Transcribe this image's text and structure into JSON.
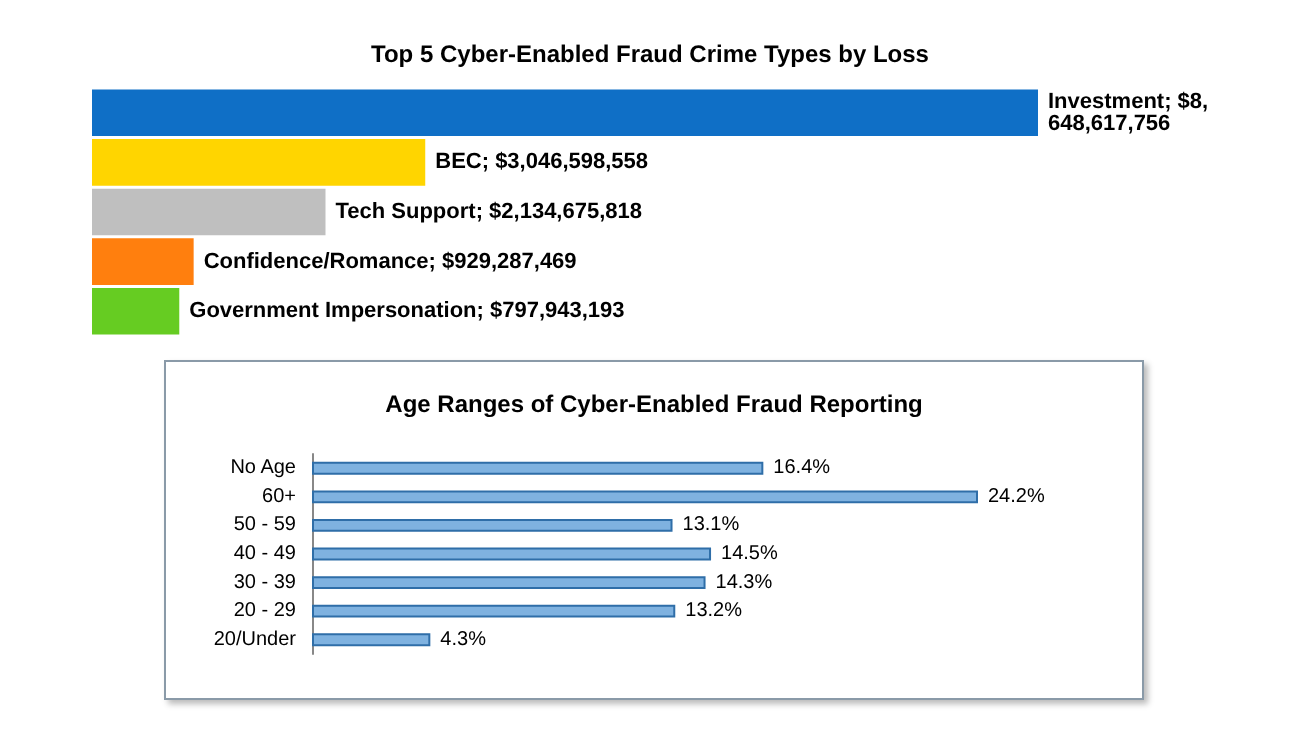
{
  "chart_data": [
    {
      "type": "bar",
      "orientation": "horizontal",
      "title": "Top 5 Cyber-Enabled Fraud Crime Types by Loss",
      "categories": [
        null,
        null,
        null,
        null,
        null
      ],
      "values": [
        8648617756,
        3046598558,
        2134675818,
        929287469,
        797943193
      ],
      "colors": [
        "#0f6fc6",
        "#ffd500",
        "#bfbfbf",
        "#ff7f0e",
        "#66cc22"
      ],
      "value_labels": [
        "Investment; $8,648,617,756",
        "BEC; $3,046,598,558",
        "Tech Support; $2,134,675,818",
        "Confidence/Romance; $929,287,469",
        "Government Impersonation; $797,943,193"
      ]
    },
    {
      "type": "bar",
      "orientation": "horizontal",
      "title": "Age Ranges of Cyber-Enabled Fraud Reporting",
      "categories": [
        "No Age",
        "60+",
        "50 - 59",
        "40 - 49",
        "30 - 39",
        "20 - 29",
        "20/Under"
      ],
      "values": [
        16.4,
        24.2,
        13.1,
        14.5,
        14.3,
        13.2,
        4.3
      ],
      "color": "#7fb2e0",
      "value_labels": [
        "16.4%",
        "24.2%",
        "13.1%",
        "14.5%",
        "14.3%",
        "13.2%",
        "4.3%"
      ]
    }
  ]
}
